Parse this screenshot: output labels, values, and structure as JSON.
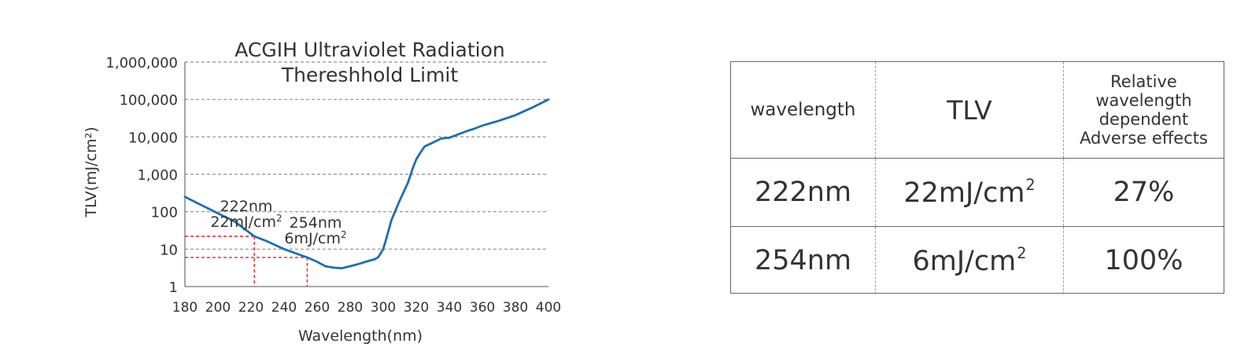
{
  "chart_data": {
    "type": "line",
    "title_lines": [
      "ACGIH Ultraviolet Radiation",
      "Thereshhold Limit"
    ],
    "xlabel": "Wavelength(nm)",
    "ylabel": "TLV(mJ/cm²)",
    "xlim": [
      180,
      400
    ],
    "ylim": [
      1,
      1000000
    ],
    "y_scale": "log",
    "x_ticks": [
      180,
      200,
      220,
      240,
      260,
      280,
      300,
      320,
      340,
      360,
      380,
      400
    ],
    "y_tick_labels": [
      "1",
      "10",
      "100",
      "1,000",
      "10,000",
      "100,000",
      "1,000,000"
    ],
    "y_tick_values": [
      1,
      10,
      100,
      1000,
      10000,
      100000,
      1000000
    ],
    "grid": "horizontal dashed",
    "series": [
      {
        "color": "#1f6fae",
        "x": [
          180,
          190,
          200,
          210,
          222,
          230,
          240,
          254,
          260,
          265,
          270,
          275,
          280,
          285,
          290,
          295,
          297,
          300,
          302,
          305,
          310,
          315,
          318,
          320,
          322,
          325,
          330,
          335,
          340,
          345,
          350,
          355,
          360,
          370,
          380,
          390,
          400
        ],
        "y": [
          250,
          150,
          90,
          55,
          22,
          16,
          10,
          6,
          4.6,
          3.5,
          3.2,
          3.1,
          3.5,
          4.0,
          4.7,
          5.4,
          6.1,
          10,
          20,
          60,
          200,
          600,
          1500,
          2500,
          3500,
          5500,
          7000,
          9000,
          9500,
          11500,
          14000,
          16500,
          20000,
          27000,
          38000,
          60000,
          100000
        ]
      }
    ],
    "annotations": [
      {
        "x": 222,
        "y": 22,
        "line1": "222nm",
        "line2_base": "22mJ/cm",
        "line2_sup": "2",
        "guide_color": "#e0202a"
      },
      {
        "x": 254,
        "y": 6,
        "line1": "254nm",
        "line2_base": "6mJ/cm",
        "line2_sup": "2",
        "guide_color": "#e0202a"
      }
    ]
  },
  "table": {
    "headers": {
      "wavelength": "wavelength",
      "tlv": "TLV",
      "effects": "Relative wavelength dependent Adverse effects"
    },
    "rows": [
      {
        "wavelength": "222nm",
        "tlv_base": "22mJ/cm",
        "tlv_sup": "2",
        "effects": "27%"
      },
      {
        "wavelength": "254nm",
        "tlv_base": "6mJ/cm",
        "tlv_sup": "2",
        "effects": "100%"
      }
    ]
  }
}
